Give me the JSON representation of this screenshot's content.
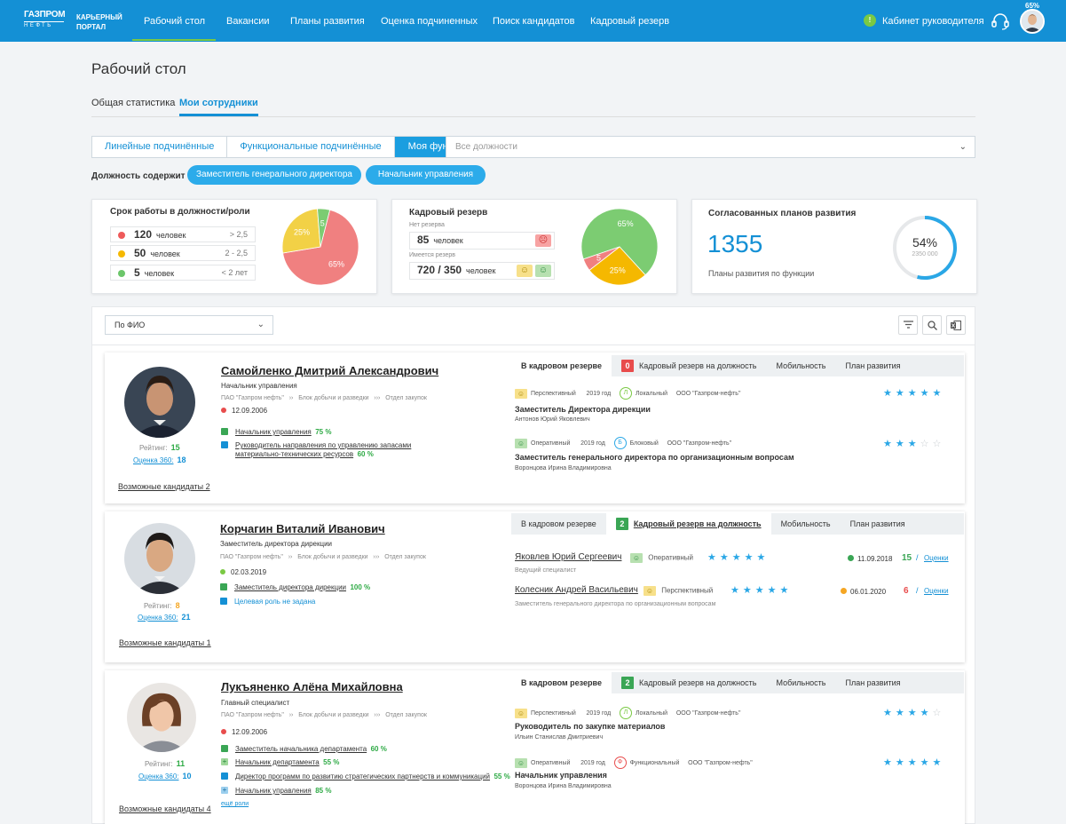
{
  "header": {
    "logo_top": "ГАЗПРОМ",
    "logo_bottom": "НЕФТЬ",
    "portal_line1": "КАРЬЕРНЫЙ",
    "portal_line2": "ПОРТАЛ",
    "nav": [
      "Рабочий стол",
      "Вакансии",
      "Планы развития",
      "Оценка подчиненных",
      "Поиск кандидатов",
      "Кадровый резерв"
    ],
    "cabinet": "Кабинет руководителя",
    "cabinet_icon": "!",
    "profile_percent": "65%"
  },
  "page": {
    "title": "Рабочий стол",
    "tabs": [
      "Общая статистика",
      "Мои сотрудники"
    ],
    "segments": [
      "Линейные подчинённые",
      "Функциональные подчинённые",
      "Моя функция"
    ],
    "position_select_placeholder": "Все должности",
    "contains_label": "Должность содержит",
    "filters": [
      "Заместитель генерального директора",
      "Начальник управления"
    ]
  },
  "cards": {
    "tenure": {
      "title": "Срок работы в должности/роли",
      "unit": "человек",
      "rows": [
        {
          "count": "120",
          "range": "> 2,5",
          "color": "#ee5a5a"
        },
        {
          "count": "50",
          "range": "2 - 2,5",
          "color": "#f5b800"
        },
        {
          "count": "5",
          "range": "< 2 лет",
          "color": "#6cc66a"
        }
      ],
      "pie": [
        {
          "value": 65,
          "label": "65%",
          "color": "#f08080"
        },
        {
          "value": 25,
          "label": "25%",
          "color": "#f2d146"
        },
        {
          "value": 5,
          "label": "5",
          "color": "#7ccc72"
        }
      ]
    },
    "reserve": {
      "title": "Кадровый резерв",
      "no_reserve_label": "Нет резерва",
      "no_reserve_value": "85",
      "no_reserve_unit": "человек",
      "has_reserve_label": "Имеется резерв",
      "has_reserve_value": "720 / 350",
      "has_reserve_unit": "человек",
      "pie": [
        {
          "value": 65,
          "label": "65%",
          "color": "#7ccc72"
        },
        {
          "value": 25,
          "label": "25%",
          "color": "#f5b800"
        },
        {
          "value": 5,
          "label": "5",
          "color": "#f08080"
        }
      ]
    },
    "plans": {
      "title": "Согласованных планов развития",
      "value": "1355",
      "caption": "Планы развития по функции",
      "percent": 54,
      "percent_label": "54%",
      "ring_sub": "2350 000"
    }
  },
  "list": {
    "sort_select": "По ФИО",
    "employees": [
      {
        "name": "Самойленко Дмитрий Александрович",
        "position": "Начальник управления",
        "path": [
          "ПАО \"Газпром нефть\"",
          "Блок добычи и разведки",
          "Отдел закупок"
        ],
        "date": "12.09.2006",
        "date_color": "#e84c4c",
        "rating_label": "Рейтинг:",
        "rating": "15",
        "o360_label": "Оценка 360:",
        "o360": "18",
        "candidates": "Возможные кандидаты 2",
        "roles": [
          {
            "text": "Начальник управления",
            "pct": "75 %",
            "icon_color": "#3aa655"
          },
          {
            "text": "Руководитель направления по управлению запасами",
            "text2": "материально-технических ресурсов",
            "pct": "60 %",
            "icon_color": "#1490d5"
          }
        ],
        "tabs": [
          "В кадровом резерве",
          "Кадровый резерв на должность",
          "Мобильность",
          "План развития"
        ],
        "tab_badge": "0",
        "tab_badge_color": "#e84c4c",
        "reserves": [
          {
            "type": "Перспективный",
            "year": "2019 год",
            "scope_letter": "Л",
            "scope": "Локальный",
            "org": "ООО \"Газпром-нефть\"",
            "title": "Заместитель Директора дирекции",
            "person": "Антонов Юрий Яковлевич",
            "stars": 5,
            "badge_color": "#f7e08a",
            "scope_color": "#7ac943"
          },
          {
            "type": "Оперативный",
            "year": "2019 год",
            "scope_letter": "Б",
            "scope": "Блоковый",
            "org": "ООО \"Газпром-нефть\"",
            "title": "Заместитель генерального директора по организационным вопросам",
            "person": "Воронцова Ирина Владимировна",
            "stars": 3,
            "badge_color": "#b7e0b0",
            "scope_color": "#2aa7e6"
          }
        ]
      },
      {
        "name": "Корчагин Виталий Иванович",
        "position": "Заместитель директора дирекции",
        "path": [
          "ПАО \"Газпром нефть\"",
          "Блок добычи и разведки",
          "Отдел закупок"
        ],
        "date": "02.03.2019",
        "date_color": "#7ac943",
        "rating_label": "Рейтинг:",
        "rating": "8",
        "o360_label": "Оценка 360:",
        "o360": "21",
        "candidates": "Возможные кандидаты 1",
        "roles": [
          {
            "text": "Заместитель директора дирекции",
            "pct": "100 %",
            "icon_color": "#3aa655"
          },
          {
            "text": "Целевая роль не задана",
            "pct": "",
            "icon_color": "#1490d5",
            "blue": true
          }
        ],
        "tabs": [
          "В кадровом резерве",
          "Кадровый резерв на должность",
          "Мобильность",
          "План развития"
        ],
        "tab_badge": "2",
        "tab_badge_color": "#3aa655",
        "candidates_list": [
          {
            "name": "Яковлев Юрий Сергеевич",
            "sub": "Ведущий специалист",
            "type": "Оперативный",
            "stars": 5,
            "date": "11.09.2018",
            "date_color": "#3aa655",
            "score": "15",
            "score_color": "#3aa655",
            "link": "Оценки",
            "badge_color": "#b7e0b0"
          },
          {
            "name": "Колесник Андрей Васильевич",
            "sub": "Заместитель генерального директора по организационным вопросам",
            "type": "Перспективный",
            "stars": 5,
            "date": "06.01.2020",
            "date_color": "#f5a623",
            "score": "6",
            "score_color": "#e84c4c",
            "link": "Оценки",
            "badge_color": "#f7e08a"
          }
        ]
      },
      {
        "name": "Лукъяненко Алёна Михайловна",
        "position": "Главный специалист",
        "path": [
          "ПАО \"Газпром нефть\"",
          "Блок добычи и разведки",
          "Отдел закупок"
        ],
        "date": "12.09.2006",
        "date_color": "#e84c4c",
        "rating_label": "Рейтинг:",
        "rating": "11",
        "o360_label": "Оценка 360:",
        "o360": "10",
        "candidates": "Возможные кандидаты 4",
        "more_roles": "ещё роли",
        "roles": [
          {
            "text": "Заместитель начальника департамента",
            "pct": "60 %",
            "icon_color": "#3aa655"
          },
          {
            "text": "Начальник департамента",
            "pct": "55 %",
            "icon_color": "#3aa655",
            "plus": true
          },
          {
            "text": "Директор программ по развитию стратегических партнерств и коммуникаций",
            "pct": "55 %",
            "icon_color": "#1490d5"
          },
          {
            "text": "Начальник управления",
            "pct": "85 %",
            "icon_color": "#1490d5",
            "plus": true
          }
        ],
        "tabs": [
          "В кадровом резерве",
          "Кадровый резерв на должность",
          "Мобильность",
          "План развития"
        ],
        "tab_badge": "2",
        "tab_badge_color": "#3aa655",
        "reserves": [
          {
            "type": "Перспективный",
            "year": "2019 год",
            "scope_letter": "Л",
            "scope": "Локальный",
            "org": "ООО \"Газпром-нефть\"",
            "title": "Руководитель по закупке материалов",
            "person": "Ильин Станислав Дмитриевич",
            "stars": 4,
            "badge_color": "#f7e08a",
            "scope_color": "#7ac943"
          },
          {
            "type": "Оперативный",
            "year": "2019 год",
            "scope_letter": "Ф",
            "scope": "Функциональный",
            "org": "ООО \"Газпром-нефть\"",
            "title": "Начальник управления",
            "person": "Воронцова Ирина Владимировна",
            "stars": 5,
            "badge_color": "#b7e0b0",
            "scope_color": "#e84c4c"
          }
        ]
      }
    ]
  }
}
